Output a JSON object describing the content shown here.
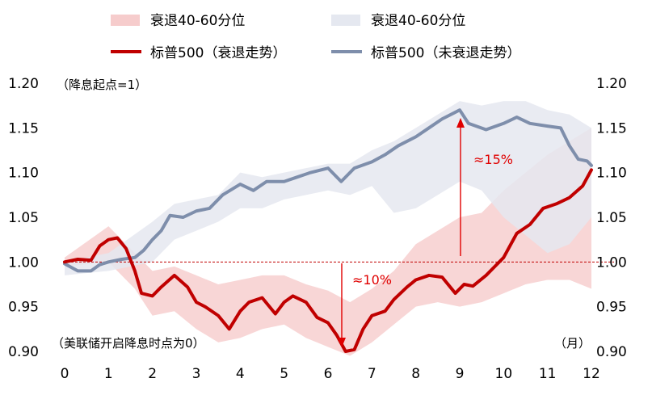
{
  "chart_data": {
    "type": "line",
    "legend": {
      "placement": "top",
      "entries": [
        {
          "label": "衰退40-60分位",
          "kind": "band",
          "color": "#f6cccc"
        },
        {
          "label": "衰退40-60分位",
          "kind": "band",
          "color": "#e5e8f0"
        },
        {
          "label": "标普500（衰退走势）",
          "kind": "line",
          "color": "#c00000"
        },
        {
          "label": "标普500（未衰退走势）",
          "kind": "line",
          "color": "#7e8eab"
        }
      ]
    },
    "annotations": {
      "base_note": "（降息起点=1）",
      "x_note": "（美联储开启降息时点为0）",
      "x_unit": "（月）",
      "gain_label_red": "≈10%",
      "gain_label_blue": "≈15%"
    },
    "x": {
      "min": 0,
      "max": 12,
      "ticks": [
        "0",
        "1",
        "2",
        "3",
        "4",
        "5",
        "6",
        "7",
        "8",
        "9",
        "10",
        "11",
        "12"
      ]
    },
    "y": {
      "min": 0.9,
      "max": 1.2,
      "ticks": [
        "0.90",
        "0.95",
        "1.00",
        "1.05",
        "1.10",
        "1.15",
        "1.20"
      ]
    },
    "reference_line": 1.0,
    "grid": false,
    "series": [
      {
        "name": "标普500（衰退走势）",
        "color": "#c00000",
        "points": [
          [
            0,
            1.0
          ],
          [
            0.3,
            1.003
          ],
          [
            0.6,
            1.002
          ],
          [
            0.8,
            1.018
          ],
          [
            1.0,
            1.025
          ],
          [
            1.2,
            1.027
          ],
          [
            1.4,
            1.015
          ],
          [
            1.6,
            0.99
          ],
          [
            1.75,
            0.965
          ],
          [
            2.0,
            0.962
          ],
          [
            2.2,
            0.972
          ],
          [
            2.5,
            0.985
          ],
          [
            2.8,
            0.972
          ],
          [
            3.0,
            0.955
          ],
          [
            3.2,
            0.95
          ],
          [
            3.5,
            0.94
          ],
          [
            3.75,
            0.925
          ],
          [
            4.0,
            0.945
          ],
          [
            4.2,
            0.955
          ],
          [
            4.5,
            0.96
          ],
          [
            4.8,
            0.942
          ],
          [
            5.0,
            0.955
          ],
          [
            5.2,
            0.962
          ],
          [
            5.5,
            0.955
          ],
          [
            5.75,
            0.938
          ],
          [
            6.0,
            0.932
          ],
          [
            6.2,
            0.918
          ],
          [
            6.4,
            0.9
          ],
          [
            6.6,
            0.902
          ],
          [
            6.8,
            0.925
          ],
          [
            7.0,
            0.94
          ],
          [
            7.3,
            0.945
          ],
          [
            7.5,
            0.958
          ],
          [
            7.8,
            0.972
          ],
          [
            8.0,
            0.98
          ],
          [
            8.3,
            0.985
          ],
          [
            8.6,
            0.983
          ],
          [
            8.9,
            0.965
          ],
          [
            9.1,
            0.975
          ],
          [
            9.3,
            0.973
          ],
          [
            9.6,
            0.985
          ],
          [
            9.8,
            0.995
          ],
          [
            10.0,
            1.005
          ],
          [
            10.3,
            1.032
          ],
          [
            10.6,
            1.042
          ],
          [
            10.9,
            1.06
          ],
          [
            11.2,
            1.065
          ],
          [
            11.5,
            1.072
          ],
          [
            11.8,
            1.085
          ],
          [
            12.0,
            1.103
          ]
        ]
      },
      {
        "name": "标普500（未衰退走势）",
        "color": "#7e8eab",
        "points": [
          [
            0,
            0.998
          ],
          [
            0.3,
            0.99
          ],
          [
            0.6,
            0.99
          ],
          [
            0.8,
            0.997
          ],
          [
            1.0,
            1.0
          ],
          [
            1.3,
            1.003
          ],
          [
            1.6,
            1.005
          ],
          [
            1.8,
            1.013
          ],
          [
            2.0,
            1.025
          ],
          [
            2.2,
            1.035
          ],
          [
            2.4,
            1.052
          ],
          [
            2.7,
            1.05
          ],
          [
            3.0,
            1.057
          ],
          [
            3.3,
            1.06
          ],
          [
            3.6,
            1.075
          ],
          [
            4.0,
            1.087
          ],
          [
            4.3,
            1.08
          ],
          [
            4.6,
            1.09
          ],
          [
            5.0,
            1.09
          ],
          [
            5.3,
            1.095
          ],
          [
            5.6,
            1.1
          ],
          [
            6.0,
            1.105
          ],
          [
            6.3,
            1.09
          ],
          [
            6.6,
            1.105
          ],
          [
            7.0,
            1.112
          ],
          [
            7.3,
            1.12
          ],
          [
            7.6,
            1.13
          ],
          [
            8.0,
            1.14
          ],
          [
            8.3,
            1.15
          ],
          [
            8.6,
            1.16
          ],
          [
            9.0,
            1.17
          ],
          [
            9.2,
            1.155
          ],
          [
            9.6,
            1.148
          ],
          [
            10.0,
            1.155
          ],
          [
            10.3,
            1.162
          ],
          [
            10.6,
            1.155
          ],
          [
            11.0,
            1.152
          ],
          [
            11.3,
            1.15
          ],
          [
            11.5,
            1.13
          ],
          [
            11.7,
            1.115
          ],
          [
            11.9,
            1.113
          ],
          [
            12.0,
            1.108
          ]
        ]
      }
    ],
    "bands": [
      {
        "name": "衰退40-60分位",
        "color": "#f6cccc",
        "upper": [
          [
            0,
            1.005
          ],
          [
            1,
            1.04
          ],
          [
            1.6,
            1.01
          ],
          [
            2,
            0.99
          ],
          [
            2.5,
            0.995
          ],
          [
            3,
            0.985
          ],
          [
            3.5,
            0.975
          ],
          [
            4,
            0.98
          ],
          [
            4.5,
            0.985
          ],
          [
            5,
            0.985
          ],
          [
            5.5,
            0.975
          ],
          [
            6,
            0.968
          ],
          [
            6.5,
            0.955
          ],
          [
            7,
            0.97
          ],
          [
            7.5,
            0.99
          ],
          [
            8,
            1.02
          ],
          [
            8.5,
            1.035
          ],
          [
            9,
            1.05
          ],
          [
            9.5,
            1.055
          ],
          [
            10,
            1.08
          ],
          [
            10.5,
            1.1
          ],
          [
            11,
            1.12
          ],
          [
            11.5,
            1.135
          ],
          [
            12,
            1.15
          ]
        ],
        "lower": [
          [
            0,
            0.995
          ],
          [
            1,
            1.0
          ],
          [
            1.6,
            0.97
          ],
          [
            2,
            0.94
          ],
          [
            2.5,
            0.945
          ],
          [
            3,
            0.925
          ],
          [
            3.5,
            0.91
          ],
          [
            4,
            0.915
          ],
          [
            4.5,
            0.925
          ],
          [
            5,
            0.93
          ],
          [
            5.5,
            0.915
          ],
          [
            6,
            0.905
          ],
          [
            6.5,
            0.895
          ],
          [
            7,
            0.91
          ],
          [
            7.5,
            0.93
          ],
          [
            8,
            0.95
          ],
          [
            8.5,
            0.955
          ],
          [
            9,
            0.95
          ],
          [
            9.5,
            0.955
          ],
          [
            10,
            0.965
          ],
          [
            10.5,
            0.975
          ],
          [
            11,
            0.98
          ],
          [
            11.5,
            0.98
          ],
          [
            12,
            0.97
          ]
        ]
      },
      {
        "name": "衰退40-60分位",
        "color": "#e5e8f0",
        "upper": [
          [
            0,
            1.0
          ],
          [
            1,
            1.01
          ],
          [
            2,
            1.045
          ],
          [
            2.5,
            1.065
          ],
          [
            3,
            1.07
          ],
          [
            3.5,
            1.075
          ],
          [
            4,
            1.1
          ],
          [
            4.5,
            1.095
          ],
          [
            5,
            1.1
          ],
          [
            5.5,
            1.105
          ],
          [
            6,
            1.11
          ],
          [
            6.5,
            1.11
          ],
          [
            7,
            1.125
          ],
          [
            7.5,
            1.135
          ],
          [
            8,
            1.15
          ],
          [
            8.5,
            1.165
          ],
          [
            9,
            1.18
          ],
          [
            9.5,
            1.175
          ],
          [
            10,
            1.18
          ],
          [
            10.5,
            1.18
          ],
          [
            11,
            1.17
          ],
          [
            11.5,
            1.165
          ],
          [
            12,
            1.15
          ]
        ],
        "lower": [
          [
            0,
            0.985
          ],
          [
            1,
            0.99
          ],
          [
            2,
            1.0
          ],
          [
            2.5,
            1.025
          ],
          [
            3,
            1.035
          ],
          [
            3.5,
            1.045
          ],
          [
            4,
            1.06
          ],
          [
            4.5,
            1.06
          ],
          [
            5,
            1.07
          ],
          [
            5.5,
            1.075
          ],
          [
            6,
            1.08
          ],
          [
            6.5,
            1.075
          ],
          [
            7,
            1.085
          ],
          [
            7.5,
            1.055
          ],
          [
            8,
            1.06
          ],
          [
            8.5,
            1.075
          ],
          [
            9,
            1.09
          ],
          [
            9.5,
            1.08
          ],
          [
            10,
            1.05
          ],
          [
            10.5,
            1.03
          ],
          [
            11,
            1.01
          ],
          [
            11.5,
            1.02
          ],
          [
            12,
            1.05
          ]
        ]
      }
    ]
  }
}
